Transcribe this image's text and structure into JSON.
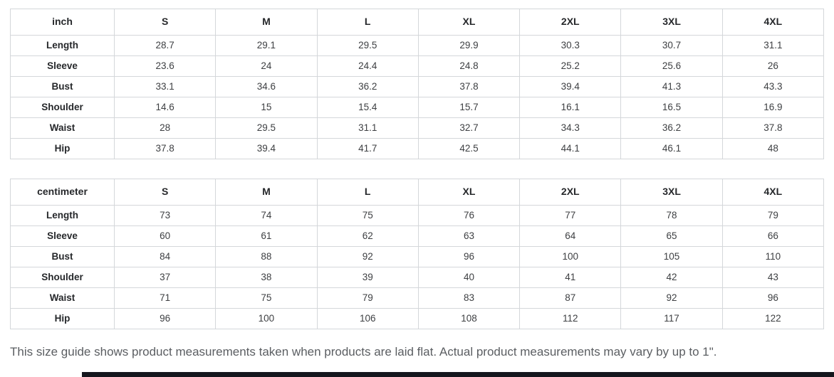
{
  "colors": {
    "table_border": "#d4d7da",
    "header_text": "#26282b",
    "value_text": "#3d3f42",
    "note_text": "#5b5e62",
    "bottom_bar": "#14161d"
  },
  "tables": [
    {
      "unit": "inch",
      "sizes": [
        "S",
        "M",
        "L",
        "XL",
        "2XL",
        "3XL",
        "4XL"
      ],
      "rows": [
        {
          "label": "Length",
          "values": [
            "28.7",
            "29.1",
            "29.5",
            "29.9",
            "30.3",
            "30.7",
            "31.1"
          ]
        },
        {
          "label": "Sleeve",
          "values": [
            "23.6",
            "24",
            "24.4",
            "24.8",
            "25.2",
            "25.6",
            "26"
          ]
        },
        {
          "label": "Bust",
          "values": [
            "33.1",
            "34.6",
            "36.2",
            "37.8",
            "39.4",
            "41.3",
            "43.3"
          ]
        },
        {
          "label": "Shoulder",
          "values": [
            "14.6",
            "15",
            "15.4",
            "15.7",
            "16.1",
            "16.5",
            "16.9"
          ]
        },
        {
          "label": "Waist",
          "values": [
            "28",
            "29.5",
            "31.1",
            "32.7",
            "34.3",
            "36.2",
            "37.8"
          ]
        },
        {
          "label": "Hip",
          "values": [
            "37.8",
            "39.4",
            "41.7",
            "42.5",
            "44.1",
            "46.1",
            "48"
          ]
        }
      ]
    },
    {
      "unit": "centimeter",
      "sizes": [
        "S",
        "M",
        "L",
        "XL",
        "2XL",
        "3XL",
        "4XL"
      ],
      "rows": [
        {
          "label": "Length",
          "values": [
            "73",
            "74",
            "75",
            "76",
            "77",
            "78",
            "79"
          ]
        },
        {
          "label": "Sleeve",
          "values": [
            "60",
            "61",
            "62",
            "63",
            "64",
            "65",
            "66"
          ]
        },
        {
          "label": "Bust",
          "values": [
            "84",
            "88",
            "92",
            "96",
            "100",
            "105",
            "110"
          ]
        },
        {
          "label": "Shoulder",
          "values": [
            "37",
            "38",
            "39",
            "40",
            "41",
            "42",
            "43"
          ]
        },
        {
          "label": "Waist",
          "values": [
            "71",
            "75",
            "79",
            "83",
            "87",
            "92",
            "96"
          ]
        },
        {
          "label": "Hip",
          "values": [
            "96",
            "100",
            "106",
            "108",
            "112",
            "117",
            "122"
          ]
        }
      ]
    }
  ],
  "note": "This size guide shows product measurements taken when products are laid flat. Actual product measurements may vary by up to 1\"."
}
